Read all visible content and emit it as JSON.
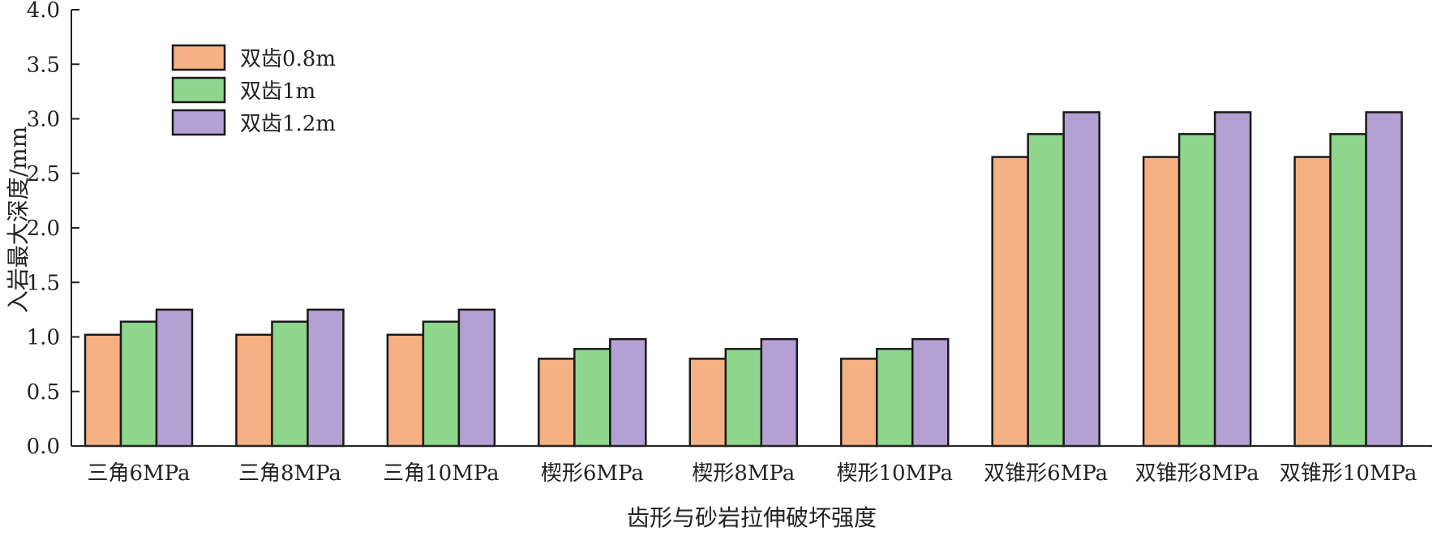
{
  "chart_data": {
    "type": "bar",
    "title": "",
    "xlabel": "齿形与砂岩拉伸破坏强度",
    "ylabel": "入岩最大深度/mm",
    "ylim": [
      0,
      4.0
    ],
    "yticks": [
      "0.0",
      "0.5",
      "1.0",
      "1.5",
      "2.0",
      "2.5",
      "3.0",
      "3.5",
      "4.0"
    ],
    "grid": false,
    "legend_position": "top-left",
    "categories": [
      "三角6MPa",
      "三角8MPa",
      "三角10MPa",
      "楔形6MPa",
      "楔形8MPa",
      "楔形10MPa",
      "双锥形6MPa",
      "双锥形8MPa",
      "双锥形10MPa"
    ],
    "series": [
      {
        "name": "双齿0.8m",
        "color": "#F5B183",
        "values": [
          1.02,
          1.02,
          1.02,
          0.8,
          0.8,
          0.8,
          2.65,
          2.65,
          2.65
        ]
      },
      {
        "name": "双齿1m",
        "color": "#8DD68C",
        "values": [
          1.14,
          1.14,
          1.14,
          0.89,
          0.89,
          0.89,
          2.86,
          2.86,
          2.86
        ]
      },
      {
        "name": "双齿1.2m",
        "color": "#B4A0D2",
        "values": [
          1.25,
          1.25,
          1.25,
          0.98,
          0.98,
          0.98,
          3.06,
          3.06,
          3.06
        ]
      }
    ]
  }
}
